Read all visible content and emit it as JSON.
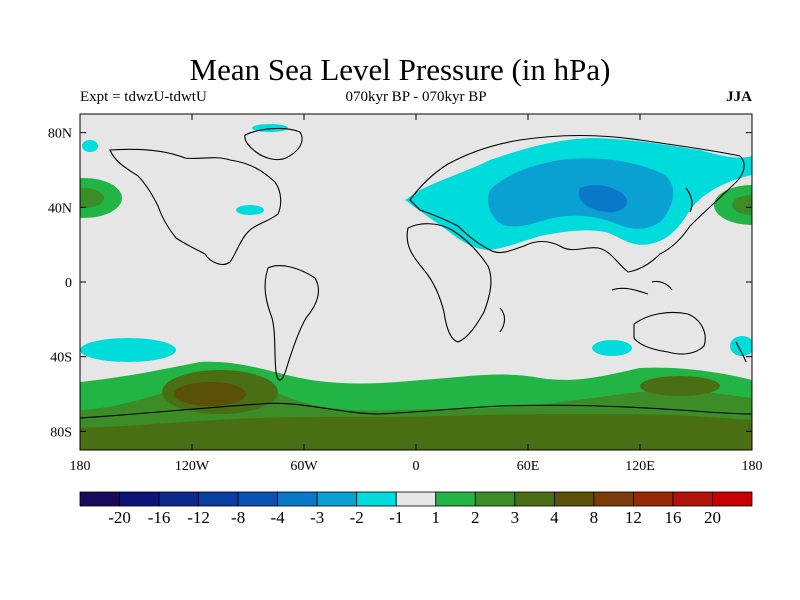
{
  "header": {
    "title": "Mean Sea Level Pressure (in hPa)",
    "left": "Expt = tdwzU-tdwtU",
    "center": "070kyr BP - 070kyr BP",
    "right": "JJA"
  },
  "chart_data": {
    "type": "heatmap",
    "title": "Mean Sea Level Pressure (in hPa)",
    "variable": "mean sea level pressure difference",
    "units": "hPa",
    "experiment": "tdwzU-tdwtU",
    "period": "070kyr BP - 070kyr BP",
    "season": "JJA",
    "projection": "cylindrical equidistant",
    "x_range": [
      -180,
      180
    ],
    "y_range": [
      -90,
      90
    ],
    "x_ticks": [
      {
        "value": -180,
        "label": "180"
      },
      {
        "value": -120,
        "label": "120W"
      },
      {
        "value": -60,
        "label": "60W"
      },
      {
        "value": 0,
        "label": "0"
      },
      {
        "value": 60,
        "label": "60E"
      },
      {
        "value": 120,
        "label": "120E"
      },
      {
        "value": 180,
        "label": "180"
      }
    ],
    "y_ticks": [
      {
        "value": 80,
        "label": "80N"
      },
      {
        "value": 40,
        "label": "40N"
      },
      {
        "value": 0,
        "label": "0"
      },
      {
        "value": -40,
        "label": "40S"
      },
      {
        "value": -80,
        "label": "80S"
      }
    ],
    "colorbar": {
      "colors": [
        "#1a0a5c",
        "#0c1478",
        "#0a2a8c",
        "#0a3ea0",
        "#0a52b4",
        "#0a78c8",
        "#0aa0d2",
        "#00dcdc",
        "#e6e6e6",
        "#23b446",
        "#3c8c28",
        "#4a6e14",
        "#5a5008",
        "#7a3c08",
        "#962808",
        "#b01408",
        "#c80000"
      ],
      "labels": [
        "-20",
        "-16",
        "-12",
        "-8",
        "-4",
        "-3",
        "-2",
        "-1",
        "1",
        "2",
        "3",
        "4",
        "8",
        "12",
        "16",
        "20"
      ]
    },
    "anomalies": [
      {
        "region": "Central Asia / Siberia",
        "level": "-4"
      },
      {
        "region": "Eurasia and North Africa",
        "level": "-2"
      },
      {
        "region": "Southern Ocean 130W-100W",
        "level": "4"
      },
      {
        "region": "Antarctica",
        "level": "3"
      },
      {
        "region": "Southern Ocean 60S band",
        "level": "2"
      },
      {
        "region": "South Atlantic 40S",
        "level": "-2"
      },
      {
        "region": "North Pacific 40N",
        "level": "2"
      }
    ]
  }
}
